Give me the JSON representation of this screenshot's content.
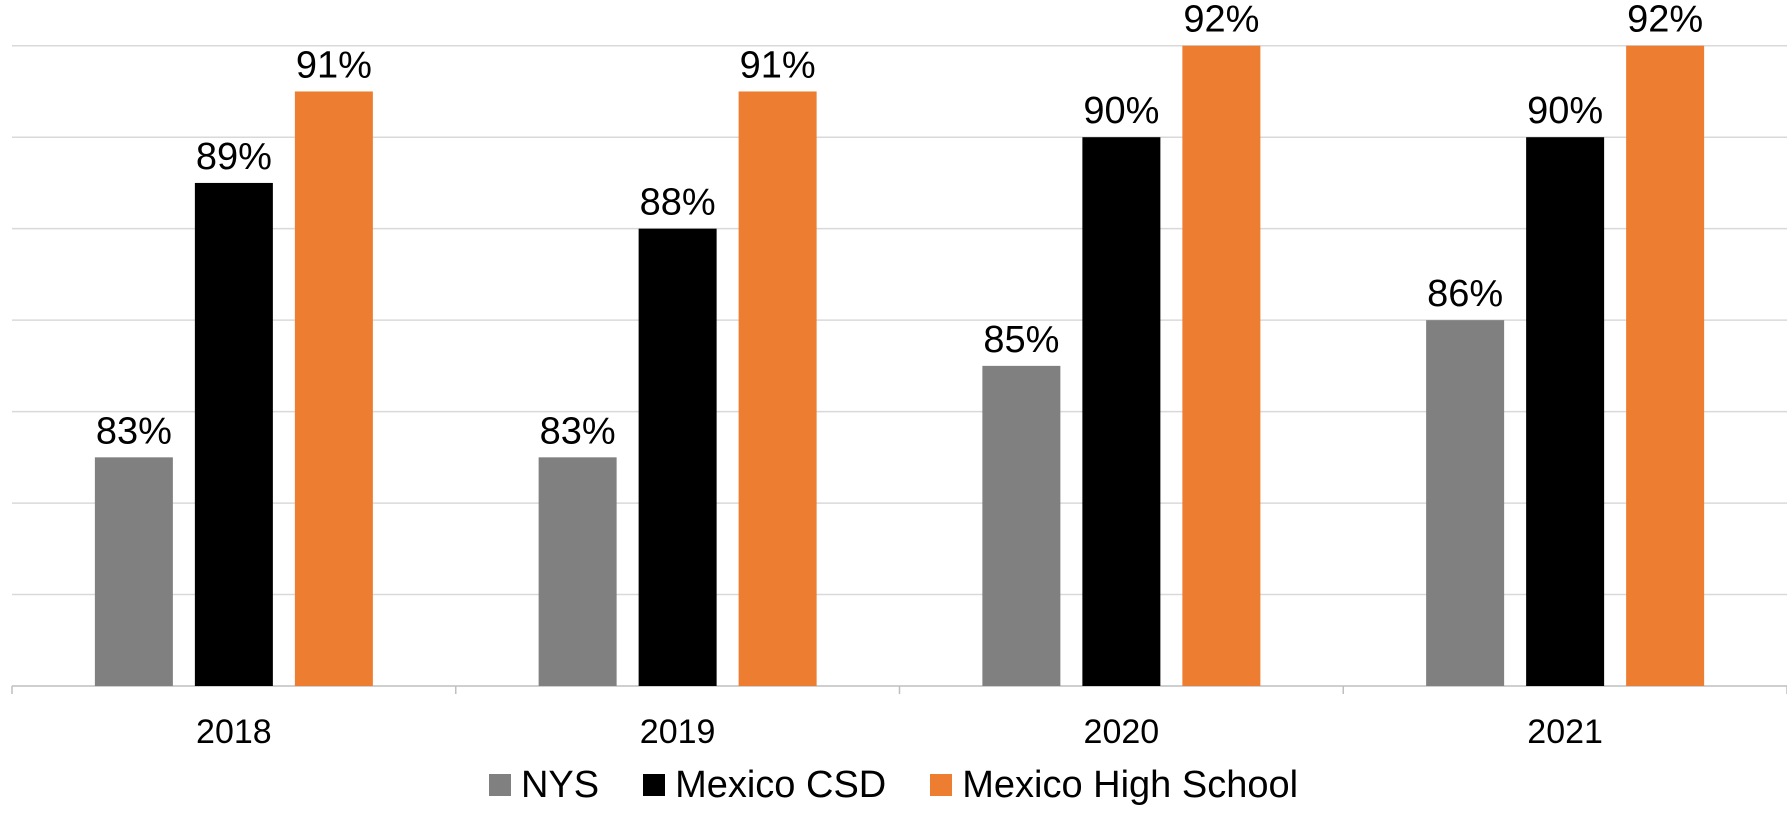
{
  "chart_data": {
    "type": "bar",
    "categories": [
      "2018",
      "2019",
      "2020",
      "2021"
    ],
    "series": [
      {
        "name": "NYS",
        "color": "#808080",
        "values": [
          83,
          83,
          85,
          86
        ],
        "labels": [
          "83%",
          "83%",
          "85%",
          "86%"
        ]
      },
      {
        "name": "Mexico CSD",
        "color": "#000000",
        "values": [
          89,
          88,
          90,
          90
        ],
        "labels": [
          "89%",
          "88%",
          "90%",
          "90%"
        ]
      },
      {
        "name": "Mexico High School",
        "color": "#ED7D31",
        "values": [
          91,
          91,
          92,
          92
        ],
        "labels": [
          "91%",
          "91%",
          "92%",
          "92%"
        ]
      }
    ],
    "ylim": [
      78,
      93
    ],
    "grid": true,
    "legend_position": "bottom"
  }
}
